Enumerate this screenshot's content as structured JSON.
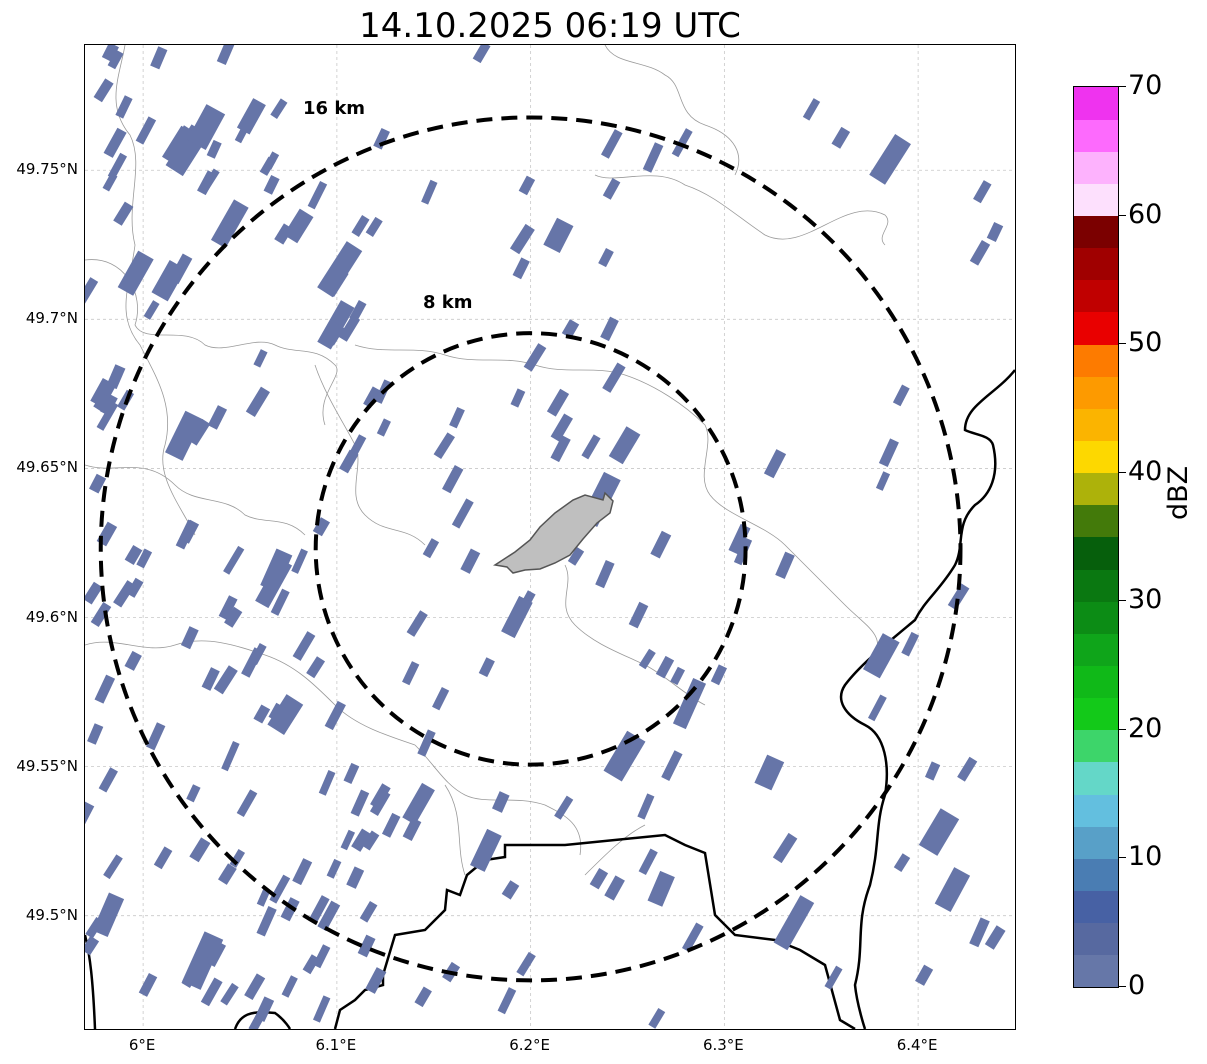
{
  "title": "14.10.2025 06:19 UTC",
  "map": {
    "lon_range": [
      5.97,
      6.45
    ],
    "lat_range": [
      49.462,
      49.792
    ],
    "center": {
      "lon": 6.2,
      "lat": 49.623
    },
    "gridlines": true,
    "lon_ticks": [
      {
        "value": 6.0,
        "label": "6°E"
      },
      {
        "value": 6.1,
        "label": "6.1°E"
      },
      {
        "value": 6.2,
        "label": "6.2°E"
      },
      {
        "value": 6.3,
        "label": "6.3°E"
      },
      {
        "value": 6.4,
        "label": "6.4°E"
      }
    ],
    "lat_ticks": [
      {
        "value": 49.75,
        "label": "49.75°N"
      },
      {
        "value": 49.7,
        "label": "49.7°N"
      },
      {
        "value": 49.65,
        "label": "49.65°N"
      },
      {
        "value": 49.6,
        "label": "49.6°N"
      },
      {
        "value": 49.55,
        "label": "49.55°N"
      },
      {
        "value": 49.5,
        "label": "49.5°N"
      }
    ],
    "range_rings": [
      {
        "label": "8 km",
        "radius_km": 8
      },
      {
        "label": "16 km",
        "radius_km": 16
      }
    ],
    "echo_color": "#6675a8"
  },
  "colorbar": {
    "unit": "dBZ",
    "min": 0,
    "max": 70,
    "tick_labels": [
      "0",
      "10",
      "20",
      "30",
      "40",
      "50",
      "60",
      "70"
    ],
    "colors": [
      "#6677a8",
      "#5769a0",
      "#4761a4",
      "#4a7db3",
      "#58a0c8",
      "#63bfdf",
      "#64d7c8",
      "#3dd56a",
      "#13c919",
      "#10b918",
      "#0fa51a",
      "#0c8c15",
      "#0a7811",
      "#065f0c",
      "#437a0a",
      "#adb20a",
      "#fdd800",
      "#fbb400",
      "#fd9a00",
      "#fd7b00",
      "#e90000",
      "#c00000",
      "#a00000",
      "#7b0000",
      "#fde0fd",
      "#fdb2fd",
      "#fd6afd",
      "#ef33ef"
    ]
  }
}
